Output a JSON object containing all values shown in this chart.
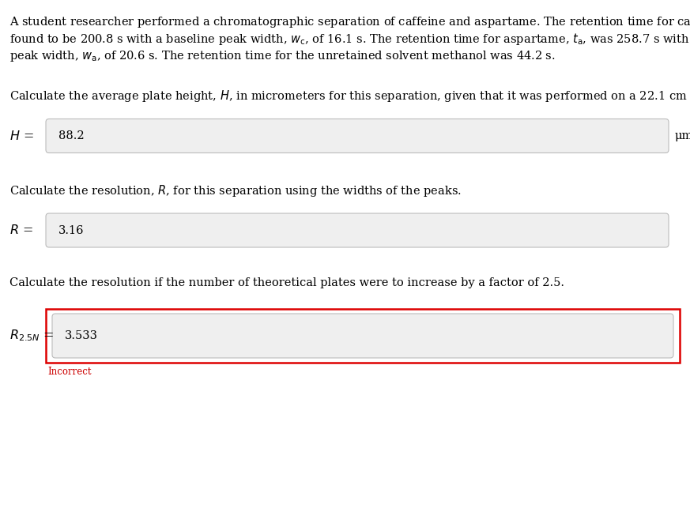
{
  "bg_color": "#ffffff",
  "text_color": "#000000",
  "red_color": "#cc0000",
  "box_fill": "#efefef",
  "box_edge": "#bbbbbb",
  "red_box_edge": "#dd0000",
  "h_value": "88.2",
  "h_unit": "μm",
  "r_value": "3.16",
  "r25n_value": "3.533",
  "incorrect_text": "Incorrect",
  "fs": 10.5,
  "fs_label": 11.5
}
